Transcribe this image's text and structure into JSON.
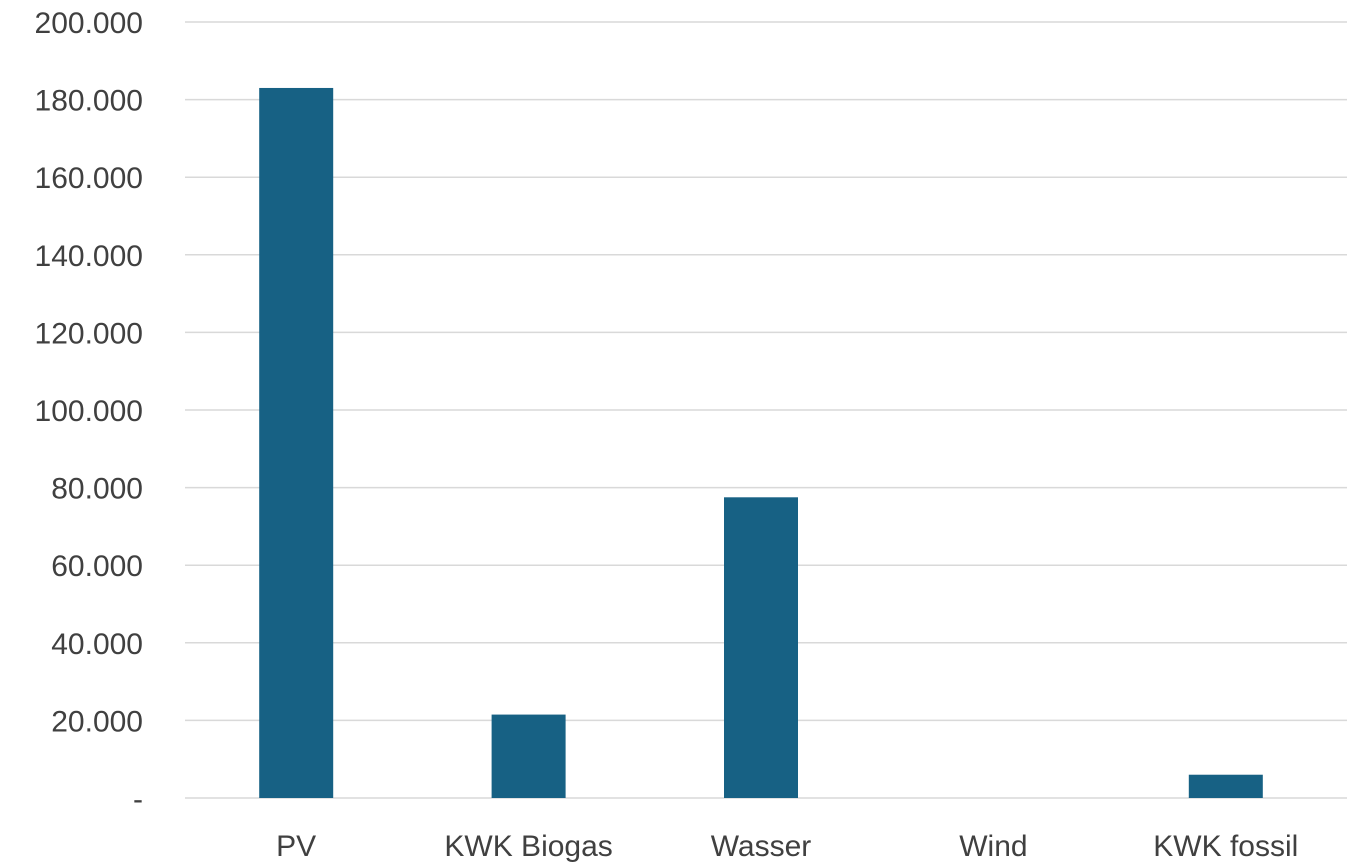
{
  "chart_data": {
    "type": "bar",
    "categories": [
      "PV",
      "KWK Biogas",
      "Wasser",
      "Wind",
      "KWK fossil"
    ],
    "values": [
      183000,
      21500,
      77500,
      0,
      6000
    ],
    "title": "",
    "xlabel": "",
    "ylabel": "",
    "ylim": [
      0,
      200000
    ],
    "y_ticks": [
      {
        "value": 0,
        "label": "-"
      },
      {
        "value": 20000,
        "label": "20.000"
      },
      {
        "value": 40000,
        "label": "40.000"
      },
      {
        "value": 60000,
        "label": "60.000"
      },
      {
        "value": 80000,
        "label": "80.000"
      },
      {
        "value": 100000,
        "label": "100.000"
      },
      {
        "value": 120000,
        "label": "120.000"
      },
      {
        "value": 140000,
        "label": "140.000"
      },
      {
        "value": 160000,
        "label": "160.000"
      },
      {
        "value": 180000,
        "label": "180.000"
      },
      {
        "value": 200000,
        "label": "200.000"
      }
    ],
    "grid": true,
    "legend": "none",
    "colors": {
      "bar": "#176184",
      "grid": "#d9d9d9",
      "text": "#404040"
    }
  }
}
